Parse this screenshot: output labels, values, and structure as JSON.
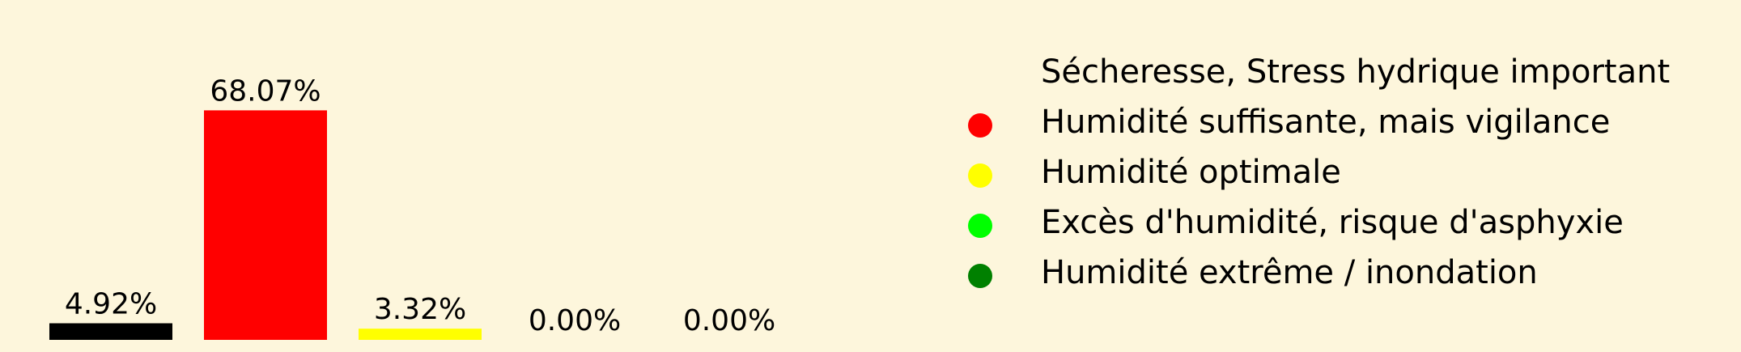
{
  "chart_data": {
    "type": "bar",
    "categories": [
      "Sécheresse, Stress hydrique important",
      "Humidité suffisante, mais vigilance",
      "Humidité optimale",
      "Excès d'humidité, risque d'asphyxie",
      "Humidité extrême / inondation"
    ],
    "values": [
      4.92,
      68.07,
      3.32,
      0.0,
      0.0
    ],
    "value_labels": [
      "4.92%",
      "68.07%",
      "3.32%",
      "0.00%",
      "0.00%"
    ],
    "colors": [
      "#000000",
      "#ff0000",
      "#ffff00",
      "#00ff00",
      "#008000"
    ],
    "ylim": [
      0,
      72
    ],
    "grid": false,
    "legend": {
      "placement": "right",
      "entries": [
        "Sécheresse, Stress hydrique important",
        "Humidité suffisante, mais vigilance",
        "Humidité optimale",
        "Excès d'humidité, risque d'asphyxie",
        "Humidité extrême / inondation"
      ]
    }
  }
}
